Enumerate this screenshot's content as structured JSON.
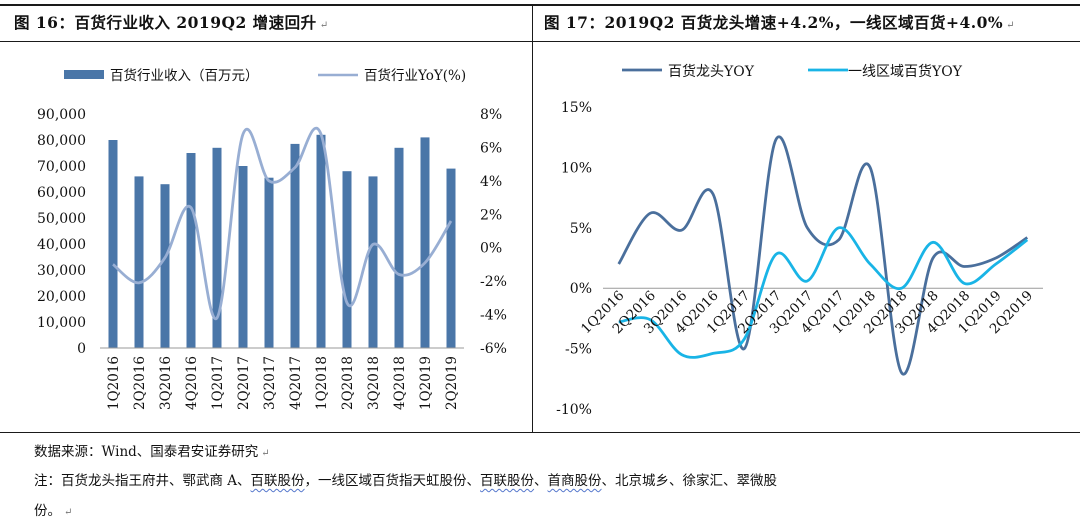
{
  "left_title": "图 16：百货行业收入 2019Q2 增速回升",
  "right_title": "图 17：2019Q2 百货龙头增速+4.2%，一线区域百货+4.0%",
  "para_mark": "↵",
  "colors": {
    "bar": "#4a76a8",
    "line_light": "#98aed3",
    "line_dark": "#4a6f9c",
    "line_cyan": "#19b4e6"
  },
  "chart_data": [
    {
      "type": "bar",
      "categories": [
        "1Q2016",
        "2Q2016",
        "3Q2016",
        "4Q2016",
        "1Q2017",
        "2Q2017",
        "3Q2017",
        "4Q2017",
        "1Q2018",
        "2Q2018",
        "3Q2018",
        "4Q2018",
        "1Q2019",
        "2Q2019"
      ],
      "series": [
        {
          "name": "百货行业收入（百万元）",
          "type": "bar",
          "axis": "left",
          "values": [
            80000,
            66000,
            63000,
            75000,
            77000,
            70000,
            65500,
            78500,
            82000,
            68000,
            66000,
            77000,
            81000,
            69000
          ]
        },
        {
          "name": "百货行业YoY(%)",
          "type": "line",
          "smooth": true,
          "axis": "right",
          "values": [
            -1.0,
            -2.1,
            -0.6,
            2.4,
            -4.2,
            6.8,
            4.0,
            4.8,
            6.8,
            -3.3,
            0.2,
            -1.6,
            -0.9,
            1.6
          ]
        }
      ],
      "ylim_left": [
        0,
        90000
      ],
      "left_ticks": [
        "0",
        "10,000",
        "20,000",
        "30,000",
        "40,000",
        "50,000",
        "60,000",
        "70,000",
        "80,000",
        "90,000"
      ],
      "ylim_right": [
        -6,
        8
      ],
      "right_ticks": [
        "-6%",
        "-4%",
        "-2%",
        "0%",
        "2%",
        "4%",
        "6%",
        "8%"
      ],
      "legend_position": "top"
    },
    {
      "type": "line",
      "categories": [
        "1Q2016",
        "2Q2016",
        "3Q2016",
        "4Q2016",
        "1Q2017",
        "2Q2017",
        "3Q2017",
        "4Q2017",
        "1Q2018",
        "2Q2018",
        "3Q2018",
        "4Q2018",
        "1Q2019",
        "2Q2019"
      ],
      "series": [
        {
          "name": "百货龙头YOY",
          "smooth": true,
          "values": [
            2.0,
            6.2,
            4.8,
            7.8,
            -5.0,
            12.3,
            5.0,
            4.0,
            10.0,
            -7.0,
            2.5,
            1.8,
            2.5,
            4.2
          ]
        },
        {
          "name": "一线区域百货YOY",
          "smooth": true,
          "values": [
            -2.8,
            -2.6,
            -5.5,
            -5.4,
            -4.2,
            2.8,
            0.6,
            5.0,
            2.0,
            0.0,
            3.8,
            0.4,
            2.0,
            4.0
          ]
        }
      ],
      "ylim": [
        -10,
        15
      ],
      "ticks": [
        "-10%",
        "-5%",
        "0%",
        "5%",
        "10%",
        "15%"
      ],
      "legend_position": "top"
    }
  ],
  "notes": {
    "source": "数据来源：Wind、国泰君安证券研究",
    "line1_prefix": "注：百货龙头指王府井、鄂武商 A、",
    "line1_wavy1": "百联股份",
    "line1_mid": "，一线区域百货指天虹股份、",
    "line1_wavy2": "百联股份",
    "line1_sep": "、",
    "line1_wavy3": "首商股份",
    "line1_suffix": "、北京城乡、徐家汇、翠微股",
    "line2": "份。"
  }
}
